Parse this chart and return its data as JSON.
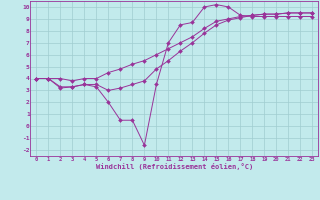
{
  "xlabel": "Windchill (Refroidissement éolien,°C)",
  "bg_color": "#c2eaec",
  "grid_color": "#a0cdd0",
  "line_color": "#993399",
  "xlim": [
    -0.5,
    23.5
  ],
  "ylim": [
    -2.5,
    10.5
  ],
  "xticks": [
    0,
    1,
    2,
    3,
    4,
    5,
    6,
    7,
    8,
    9,
    10,
    11,
    12,
    13,
    14,
    15,
    16,
    17,
    18,
    19,
    20,
    21,
    22,
    23
  ],
  "yticks": [
    -2,
    -1,
    0,
    1,
    2,
    3,
    4,
    5,
    6,
    7,
    8,
    9,
    10
  ],
  "series": [
    [
      4.0,
      4.0,
      3.2,
      3.3,
      3.5,
      3.3,
      2.0,
      0.5,
      0.5,
      -1.6,
      3.5,
      7.0,
      8.5,
      8.7,
      10.0,
      10.2,
      10.0,
      9.3,
      9.2,
      9.2,
      9.2,
      9.2,
      9.2,
      9.2
    ],
    [
      4.0,
      4.0,
      4.0,
      3.8,
      4.0,
      4.0,
      4.5,
      4.8,
      5.2,
      5.5,
      6.0,
      6.5,
      7.0,
      7.5,
      8.2,
      8.8,
      9.0,
      9.2,
      9.3,
      9.4,
      9.4,
      9.5,
      9.5,
      9.5
    ],
    [
      4.0,
      4.0,
      3.3,
      3.3,
      3.5,
      3.5,
      3.0,
      3.2,
      3.5,
      3.8,
      4.8,
      5.5,
      6.3,
      7.0,
      7.8,
      8.5,
      8.9,
      9.1,
      9.3,
      9.4,
      9.4,
      9.5,
      9.5,
      9.5
    ]
  ]
}
